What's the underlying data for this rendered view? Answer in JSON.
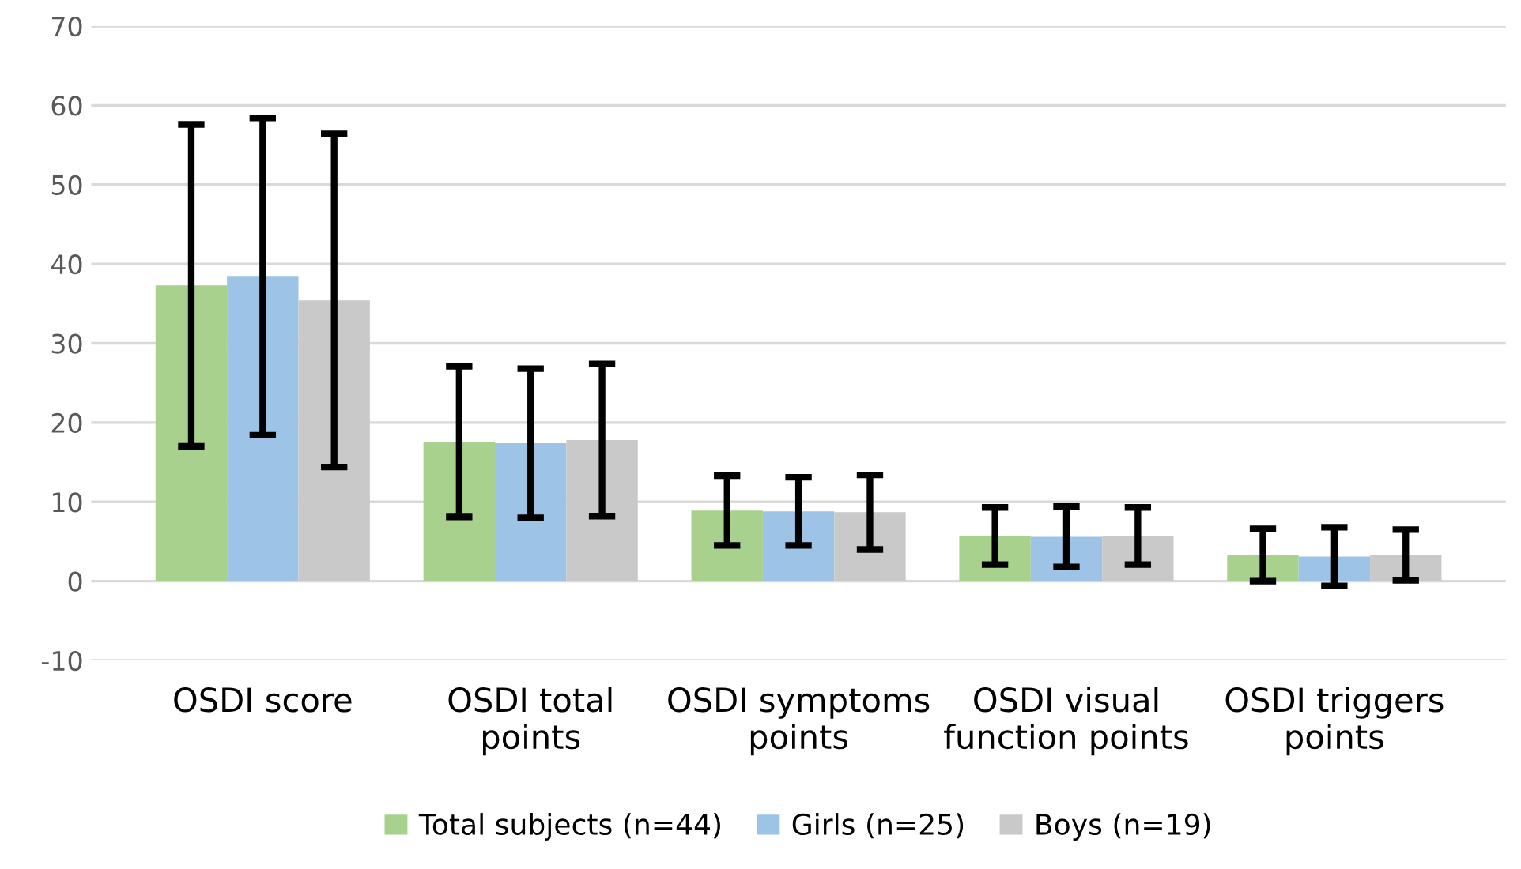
{
  "chart_data": {
    "type": "bar",
    "categories": [
      "OSDI score",
      "OSDI total\npoints",
      "OSDI symptoms\npoints",
      "OSDI visual\nfunction points",
      "OSDI triggers\npoints"
    ],
    "series": [
      {
        "name": "Total subjects (n=44)",
        "color": "#a9d18e",
        "values": [
          37.3,
          17.6,
          8.9,
          5.7,
          3.3
        ],
        "errors": [
          20.3,
          9.5,
          4.4,
          3.6,
          3.3
        ]
      },
      {
        "name": "Girls (n=25)",
        "color": "#9dc3e6",
        "values": [
          38.4,
          17.4,
          8.8,
          5.6,
          3.1
        ],
        "errors": [
          20.0,
          9.4,
          4.3,
          3.8,
          3.7
        ]
      },
      {
        "name": "Boys (n=19)",
        "color": "#c9c9c9",
        "values": [
          35.4,
          17.8,
          8.7,
          5.7,
          3.3
        ],
        "errors": [
          21.0,
          9.6,
          4.7,
          3.6,
          3.2
        ]
      }
    ],
    "ylim": [
      -10,
      70
    ],
    "yticks": [
      -10,
      0,
      10,
      20,
      30,
      40,
      50,
      60,
      70
    ],
    "grid": "y",
    "legend": "bottom"
  }
}
